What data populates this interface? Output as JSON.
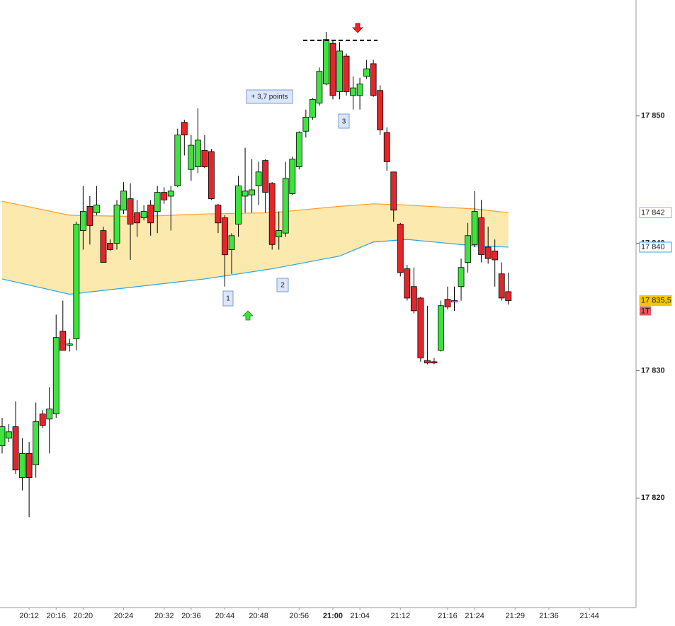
{
  "chart_data": {
    "type": "candlestick",
    "categories": [
      null,
      null,
      null,
      null,
      "20:12",
      null,
      null,
      null,
      "20:16",
      null,
      null,
      null,
      "20:20",
      null,
      null,
      null,
      null,
      null,
      "20:24",
      null,
      null,
      null,
      null,
      null,
      "20:32",
      null,
      null,
      null,
      "20:36",
      null,
      null,
      null,
      null,
      "20:44",
      null,
      null,
      null,
      null,
      "20:48",
      null,
      null,
      null,
      null,
      null,
      "20:56",
      null,
      null,
      null,
      null,
      "21:00",
      null,
      null,
      null,
      "21:04",
      null,
      null,
      null,
      null,
      null,
      "21:12",
      null,
      null,
      null,
      null,
      null,
      null,
      "21:16",
      null,
      null,
      null,
      "21:24",
      null,
      null,
      null,
      null,
      null,
      "21:29",
      null,
      null,
      null,
      null,
      "21:36",
      null,
      null,
      null,
      null,
      null,
      "21:44"
    ],
    "open": [
      17824.1,
      17824.7,
      17825.6,
      17821.6,
      17823.5,
      17822.6,
      17826.6,
      17826.2,
      17826.6,
      17833.1,
      17832.0,
      17832.5,
      17841.0,
      17842.9,
      17842.4,
      17841.0,
      17840.0,
      17840.0,
      17842.6,
      17843.5,
      17842.4,
      17842.0,
      17843.0,
      17842.5,
      17844.0,
      17843.7,
      17844.5,
      17849.5,
      17845.8,
      17846.0,
      17847.3,
      17847.2,
      17843.0,
      17842.0,
      17839.5,
      17841.5,
      17843.7,
      17843.8,
      17844.5,
      17846.5,
      17844.7,
      17840.5,
      17840.8,
      17843.9,
      17846.0,
      17848.8,
      17849.9,
      17851.0,
      17852.5,
      17855.7,
      17851.9,
      17854.7,
      17851.6,
      17851.6,
      17853.1,
      17854.1,
      17852.0,
      17848.7,
      17845.6,
      17841.5,
      17838.0,
      17836.6,
      17835.7,
      17830.8,
      17830.7,
      17831.6,
      17835.6,
      17835.4,
      17836.6,
      17838.5,
      17839.9,
      17842.0,
      17839.7,
      17839.4,
      17837.6,
      17836.2,
      null,
      null,
      null,
      null,
      null,
      null,
      null,
      null,
      null,
      null,
      null,
      null
    ],
    "high": [
      17826.3,
      17825.8,
      17827.6,
      17824.7,
      17824.4,
      17827.5,
      17826.9,
      17828.7,
      17834.4,
      17835.5,
      17832.5,
      17841.7,
      17844.5,
      17843.7,
      17844.5,
      17841.3,
      17840.3,
      17843.4,
      17844.8,
      17844.7,
      17843.4,
      17843.0,
      17843.4,
      17844.5,
      17844.4,
      17844.5,
      17849.0,
      17849.7,
      17848.5,
      17850.6,
      17848.5,
      17847.4,
      17843.1,
      17842.2,
      17840.8,
      17845.3,
      17847.5,
      17846.6,
      17846.4,
      17846.6,
      17844.8,
      17842.5,
      17846.4,
      17846.8,
      17848.8,
      17850.5,
      17851.4,
      17853.8,
      17856.6,
      17855.9,
      17855.8,
      17854.9,
      17853.1,
      17853.0,
      17854.4,
      17854.4,
      17852.4,
      17849.1,
      17845.6,
      17841.6,
      17838.3,
      17838.1,
      17835.8,
      17835.1,
      17831.0,
      17835.5,
      17836.6,
      17836.6,
      17838.8,
      17841.6,
      17844.1,
      17843.4,
      17841.3,
      17840.3,
      17838.5,
      17837.7,
      null,
      null,
      null,
      null,
      null,
      null,
      null,
      null,
      null,
      null,
      null,
      null
    ],
    "low": [
      17823.5,
      17824.4,
      17821.9,
      17820.6,
      17818.5,
      17821.6,
      17825.5,
      17823.5,
      17826.3,
      17831.6,
      17831.5,
      17831.6,
      17839.5,
      17839.9,
      17842.2,
      17838.5,
      17839.4,
      17839.5,
      17842.3,
      17838.7,
      17840.5,
      17841.8,
      17840.6,
      17840.8,
      17843.1,
      17841.0,
      17844.4,
      17846.9,
      17844.9,
      17845.5,
      17845.9,
      17843.4,
      17840.8,
      17836.6,
      17837.6,
      17840.5,
      17842.4,
      17842.4,
      17843.0,
      17842.4,
      17839.5,
      17839.5,
      17840.5,
      17843.8,
      17845.8,
      17848.3,
      17849.7,
      17850.8,
      17852.4,
      17851.3,
      17851.3,
      17851.6,
      17850.5,
      17850.5,
      17852.9,
      17851.5,
      17848.5,
      17845.7,
      17841.7,
      17837.4,
      17835.5,
      17834.5,
      17830.7,
      17830.5,
      17830.5,
      17831.5,
      17834.8,
      17834.7,
      17835.5,
      17837.7,
      17839.7,
      17838.5,
      17838.4,
      17836.6,
      17835.5,
      17835.2,
      null,
      null,
      null,
      null,
      null,
      null,
      null,
      null,
      null,
      null,
      null,
      null
    ],
    "close": [
      17825.6,
      17825.2,
      17822.2,
      17823.5,
      17821.6,
      17826.0,
      17825.7,
      17827.0,
      17832.6,
      17831.6,
      17832.1,
      17841.5,
      17842.5,
      17841.4,
      17843.0,
      17838.5,
      17839.5,
      17843.0,
      17844.1,
      17841.5,
      17841.6,
      17842.5,
      17841.6,
      17844.0,
      17843.4,
      17844.1,
      17848.5,
      17848.5,
      17847.7,
      17848.1,
      17846.0,
      17843.5,
      17841.6,
      17839.1,
      17840.6,
      17844.5,
      17844.1,
      17844.2,
      17845.6,
      17844.0,
      17839.9,
      17841.0,
      17845.1,
      17846.6,
      17848.7,
      17849.9,
      17851.3,
      17853.5,
      17856.0,
      17851.6,
      17855.1,
      17851.9,
      17852.2,
      17852.5,
      17853.7,
      17851.6,
      17848.9,
      17846.4,
      17842.6,
      17837.7,
      17835.7,
      17834.7,
      17831.0,
      17830.6,
      17830.6,
      17835.1,
      17835.0,
      17835.5,
      17838.1,
      17840.6,
      17842.5,
      17839.1,
      17838.8,
      17838.7,
      17835.7,
      17835.5,
      null,
      null,
      null,
      null,
      null,
      null,
      null,
      null,
      null,
      null,
      null,
      null
    ],
    "colors": {
      "up": "#3ee43e",
      "down": "#e3262b"
    },
    "emphasis_category": 49,
    "ylim": [
      17811.4,
      17859.1
    ],
    "yticks": [
      {
        "value": 17850,
        "label": "17 850"
      },
      {
        "value": 17840,
        "label": "17 840"
      },
      {
        "value": 17830,
        "label": "17 830"
      },
      {
        "value": 17820,
        "label": "17 820"
      }
    ],
    "bands": {
      "x": [
        0,
        10,
        20,
        30,
        40,
        50,
        55,
        60,
        70,
        75
      ],
      "upper": [
        17843.3,
        17842.2,
        17842.1,
        17842.3,
        17842.4,
        17842.9,
        17843.1,
        17843.0,
        17842.7,
        17842.4
      ],
      "lower": [
        17837.2,
        17836.0,
        17836.6,
        17837.2,
        17838.0,
        17839.0,
        17840.1,
        17840.3,
        17839.8,
        17839.7
      ],
      "upper_color": "#f5a030",
      "lower_color": "#2aa5e6",
      "fill": "#fce9ae"
    },
    "price_tags": [
      {
        "value": 17842.4,
        "label": "17 842",
        "color": "#f5a030",
        "filled": false
      },
      {
        "value": 17839.7,
        "label": "17 840",
        "color": "#2aa5e6",
        "filled": false
      },
      {
        "value": 17835.5,
        "label": "17 835,5",
        "color": "#f7c600",
        "filled": true
      }
    ],
    "period": "1T",
    "annotations": {
      "gain": "+ 3,7 points",
      "markers": [
        "1",
        "2",
        "3"
      ]
    }
  }
}
